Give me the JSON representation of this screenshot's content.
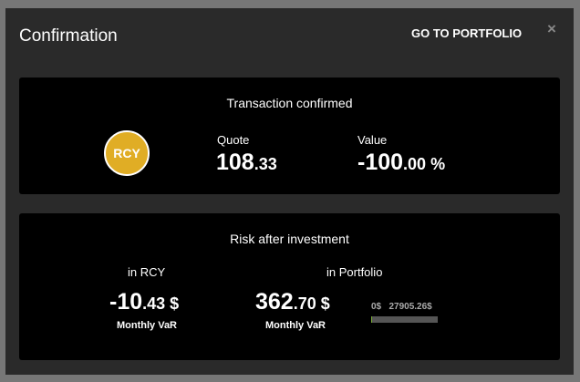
{
  "modal": {
    "title": "Confirmation",
    "go_to_portfolio": "GO TO PORTFOLIO",
    "close": "×"
  },
  "transaction": {
    "title": "Transaction confirmed",
    "ticker": "RCY",
    "badge_color": "#e0ad25",
    "quote_label": "Quote",
    "quote_int": "108",
    "quote_dec": ".33",
    "value_label": "Value",
    "value_int": "-100",
    "value_dec": ".00",
    "value_unit": " %"
  },
  "risk": {
    "title": "Risk after investment",
    "rcy_label": "in RCY",
    "rcy_int": "-10",
    "rcy_dec": ".43",
    "rcy_unit": " $",
    "rcy_sub": "Monthly VaR",
    "portfolio_label": "in Portfolio",
    "portfolio_int": "362",
    "portfolio_dec": ".70",
    "portfolio_unit": " $",
    "portfolio_sub": "Monthly VaR",
    "range_min": "0$",
    "range_max": "27905.26$",
    "bar_fill_percent": 1.3
  }
}
